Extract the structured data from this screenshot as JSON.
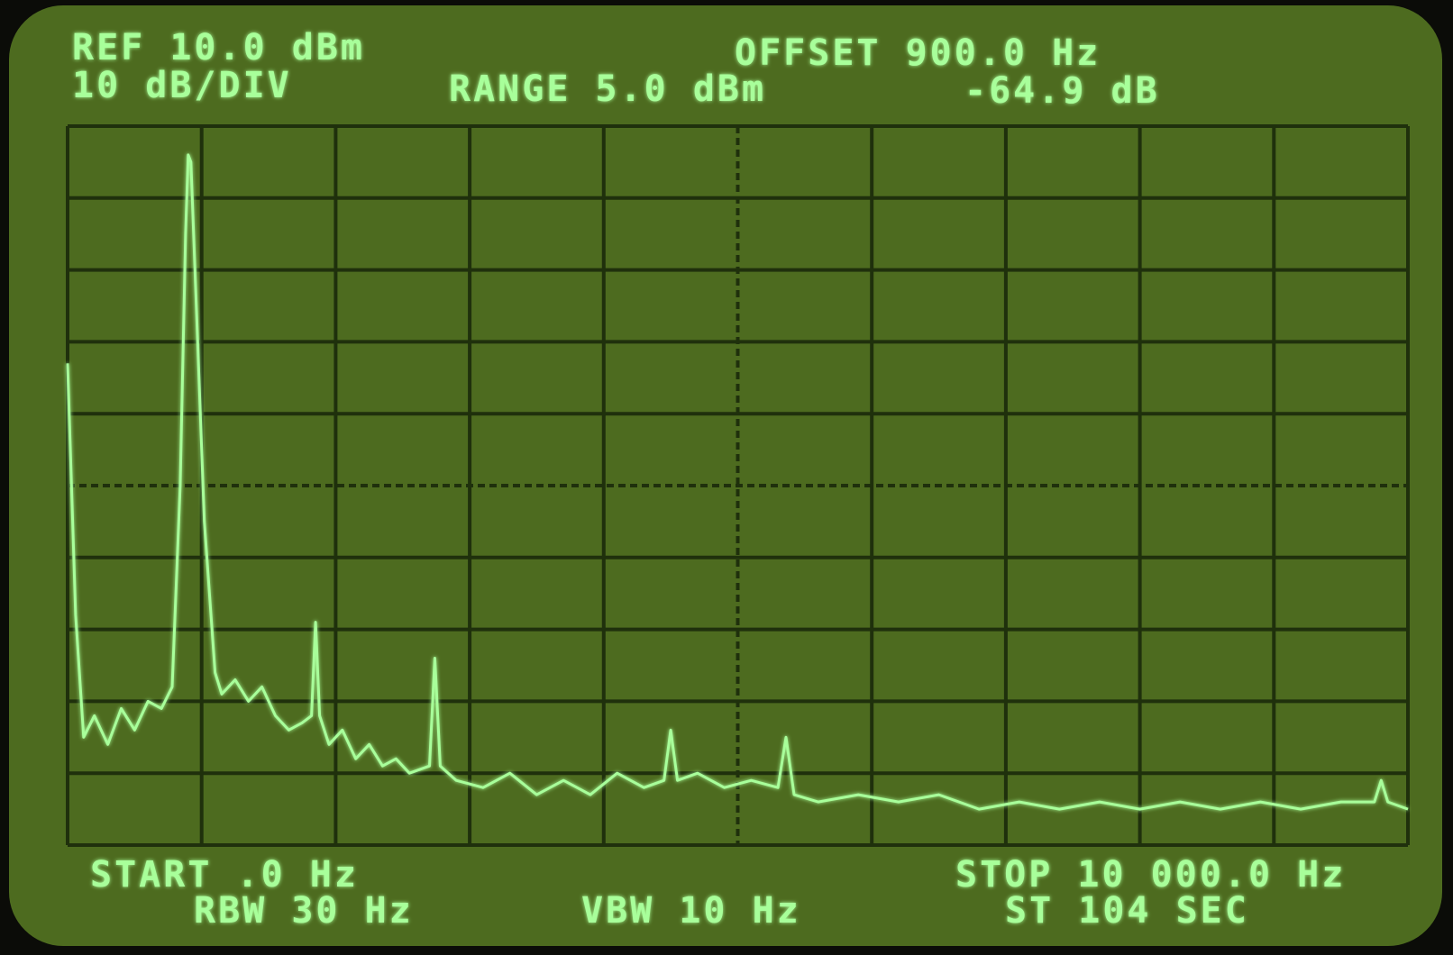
{
  "chart_data": {
    "type": "line",
    "reference": "REF 10.0 dBm",
    "scale": "10 dB/DIV",
    "range": "RANGE 5.0 dBm",
    "offset": "OFFSET 900.0 Hz",
    "marker_delta": "-64.9 dB",
    "start": "START .0 Hz",
    "rbw": "RBW 30 Hz",
    "vbw": "VBW 10 Hz",
    "stop": "STOP 10 000.0 Hz",
    "sweep_time": "ST 104 SEC",
    "xlim": [
      0,
      10000
    ],
    "ylim": [
      -90,
      10
    ],
    "xticks": [
      0,
      1000,
      2000,
      3000,
      4000,
      5000,
      6000,
      7000,
      8000,
      9000,
      10000
    ],
    "yticks": [
      -90,
      -80,
      -70,
      -60,
      -50,
      -40,
      -30,
      -20,
      -10,
      0,
      10
    ],
    "grid": true,
    "color": "#a8ff9a",
    "x": [
      0,
      60,
      120,
      200,
      300,
      400,
      500,
      600,
      700,
      780,
      840,
      880,
      900,
      920,
      960,
      1020,
      1100,
      1150,
      1250,
      1350,
      1450,
      1550,
      1650,
      1750,
      1820,
      1850,
      1880,
      1950,
      2050,
      2150,
      2250,
      2350,
      2450,
      2550,
      2700,
      2740,
      2780,
      2900,
      3100,
      3300,
      3500,
      3700,
      3900,
      4100,
      4300,
      4450,
      4500,
      4550,
      4700,
      4900,
      5100,
      5300,
      5360,
      5420,
      5600,
      5900,
      6200,
      6500,
      6800,
      7100,
      7400,
      7700,
      8000,
      8300,
      8600,
      8900,
      9200,
      9500,
      9750,
      9800,
      9850,
      10000
    ],
    "values": [
      -23,
      -58,
      -75,
      -72,
      -76,
      -71,
      -74,
      -70,
      -71,
      -68,
      -40,
      -5,
      6,
      5,
      -15,
      -45,
      -66,
      -69,
      -67,
      -70,
      -68,
      -72,
      -74,
      -73,
      -72,
      -59,
      -72,
      -76,
      -74,
      -78,
      -76,
      -79,
      -78,
      -80,
      -79,
      -64,
      -79,
      -81,
      -82,
      -80,
      -83,
      -81,
      -83,
      -80,
      -82,
      -81,
      -74,
      -81,
      -80,
      -82,
      -81,
      -82,
      -75,
      -83,
      -84,
      -83,
      -84,
      -83,
      -85,
      -84,
      -85,
      -84,
      -85,
      -84,
      -85,
      -84,
      -85,
      -84,
      -84,
      -81,
      -84,
      -85
    ]
  }
}
